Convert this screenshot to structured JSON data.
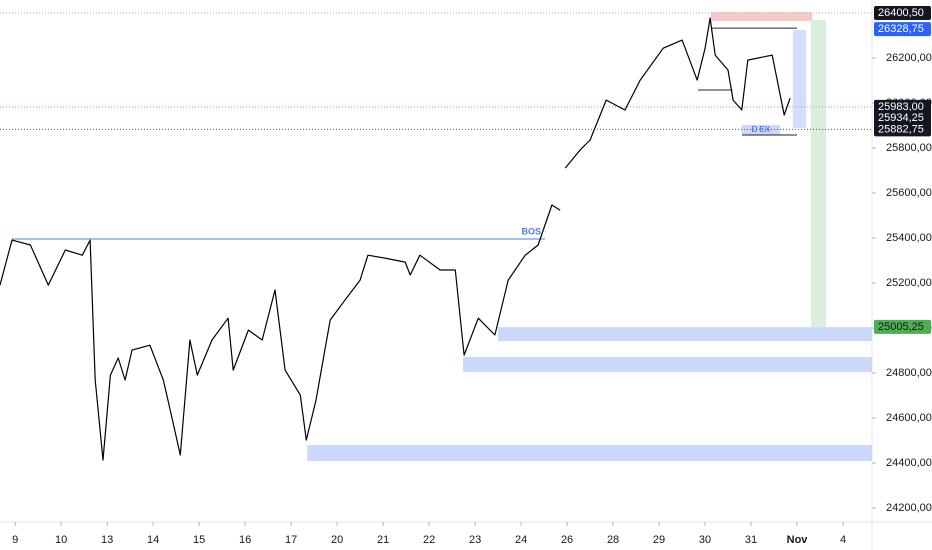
{
  "chart_data": {
    "type": "line",
    "color": "#000000",
    "x": [
      -0.33,
      -0.07,
      0.33,
      0.72,
      1.09,
      1.46,
      1.63,
      1.74,
      1.91,
      2.07,
      2.24,
      2.39,
      2.54,
      2.93,
      3.22,
      3.37,
      3.59,
      3.8,
      3.96,
      4.28,
      4.63,
      4.74,
      5.07,
      5.37,
      5.65,
      5.87,
      6.2,
      6.33,
      6.54,
      6.85,
      7.17,
      7.5,
      7.67,
      8.04,
      8.48,
      8.59,
      8.8,
      9.24,
      9.57,
      9.76,
      10.07,
      10.43,
      10.72,
      11.09,
      11.37,
      11.67,
      11.85,
      11.9,
      11.96,
      12.28,
      12.5,
      12.85,
      13.26,
      13.59,
      14.09,
      14.5,
      14.83,
      15.0,
      15.11,
      15.22,
      15.5,
      15.61,
      15.8,
      15.93,
      16.46,
      16.72,
      16.85
    ],
    "values": [
      25191,
      25391,
      25369,
      25191,
      25347,
      25324,
      25391,
      24769,
      24413,
      24791,
      24867,
      24769,
      24902,
      24924,
      24769,
      24636,
      24436,
      24947,
      24791,
      24947,
      25044,
      24813,
      24991,
      24947,
      25169,
      24813,
      24702,
      24502,
      24680,
      25036,
      25124,
      25213,
      25324,
      25311,
      25293,
      25236,
      25324,
      25258,
      25258,
      24880,
      25044,
      24969,
      25213,
      25324,
      25369,
      25547,
      25524,
      null,
      25711,
      25791,
      25836,
      26013,
      25969,
      26102,
      26244,
      26280,
      26102,
      26244,
      26378,
      26213,
      26147,
      26013,
      25969,
      26191,
      26213,
      25947,
      26022
    ],
    "xlim": [
      -0.33,
      18.63
    ],
    "ylim": [
      24147,
      26458
    ],
    "xticks": [
      {
        "value": 0,
        "label": "9"
      },
      {
        "value": 1,
        "label": "10"
      },
      {
        "value": 2,
        "label": "13"
      },
      {
        "value": 3,
        "label": "14"
      },
      {
        "value": 4,
        "label": "15"
      },
      {
        "value": 5,
        "label": "16"
      },
      {
        "value": 6,
        "label": "17"
      },
      {
        "value": 7,
        "label": "20"
      },
      {
        "value": 8,
        "label": "21"
      },
      {
        "value": 9,
        "label": "22"
      },
      {
        "value": 10,
        "label": "23"
      },
      {
        "value": 11,
        "label": "24"
      },
      {
        "value": 12,
        "label": "26"
      },
      {
        "value": 13,
        "label": "28"
      },
      {
        "value": 14,
        "label": "29"
      },
      {
        "value": 15,
        "label": "30"
      },
      {
        "value": 16,
        "label": "31"
      },
      {
        "value": 17,
        "label": "Nov"
      },
      {
        "value": 18,
        "label": "4"
      }
    ],
    "yticks": [
      {
        "value": 24200,
        "label": "24200,00"
      },
      {
        "value": 24400,
        "label": "24400,00"
      },
      {
        "value": 24600,
        "label": "24600,00"
      },
      {
        "value": 24800,
        "label": "24800,00"
      },
      {
        "value": 25000,
        "label": "25000,00"
      },
      {
        "value": 25200,
        "label": "25200,00"
      },
      {
        "value": 25400,
        "label": "25400,00"
      },
      {
        "value": 25600,
        "label": "25600,00"
      },
      {
        "value": 25800,
        "label": "25800,00"
      },
      {
        "value": 26000,
        "label": "26000,00"
      },
      {
        "value": 26200,
        "label": "26200,00"
      }
    ],
    "grid": false,
    "zones": [
      {
        "x0": 10.5,
        "y0": 24942,
        "y1": 25004,
        "color": "#c9d8fb"
      },
      {
        "x0": 9.74,
        "y0": 24804,
        "y1": 24871,
        "color": "#c9d8fb"
      },
      {
        "x0": 6.35,
        "y0": 24409,
        "y1": 24480,
        "color": "#c9d8fb"
      },
      {
        "x0": 15.13,
        "x1": 17.33,
        "y0": 26364,
        "y1": 26404,
        "color": "#f7caca"
      },
      {
        "x0": 17.3,
        "x1": 17.63,
        "y0": 25004,
        "y1": 26369,
        "color": "#d9efdc"
      },
      {
        "x0": 16.91,
        "x1": 17.2,
        "y0": 25889,
        "y1": 26324,
        "color": "#d2defb"
      },
      {
        "x0": 15.8,
        "x1": 16.63,
        "y0": 25858,
        "y1": 25902,
        "color": "#c9d8fb",
        "label": "D EX"
      }
    ],
    "lines": [
      {
        "x0": -0.07,
        "x1": 11.52,
        "y": 25396,
        "color": "#4a7fe0",
        "label": "BOS"
      },
      {
        "x0": 15.13,
        "x1": 17.0,
        "y": 26333,
        "color": "#222222"
      },
      {
        "x0": 14.85,
        "x1": 15.6,
        "y": 26058,
        "color": "#222222"
      },
      {
        "x0": 15.8,
        "x1": 17.0,
        "y": 25858,
        "color": "#222222"
      }
    ],
    "price_lines": [
      {
        "value": 26400.5,
        "label": "26400,50",
        "color": "#131722",
        "text_color": "#ffffff",
        "dotted": "#b0b0b0"
      },
      {
        "value": 26328.75,
        "label": "26328,75",
        "color": "#2962ff",
        "text_color": "#ffffff"
      },
      {
        "value": 25983,
        "label": "25983,00",
        "color": "#131722",
        "text_color": "#ffffff",
        "dotted": "#e57a8a"
      },
      {
        "value": 25934.25,
        "label": "25934,25",
        "color": "#131722",
        "text_color": "#ffffff"
      },
      {
        "value": 25882.75,
        "label": "25882,75",
        "color": "#131722",
        "text_color": "#ffffff",
        "dotted": "#555555"
      },
      {
        "value": 25005.25,
        "label": "25005,25",
        "color": "#4caf50",
        "text_color": "#131722"
      }
    ]
  }
}
